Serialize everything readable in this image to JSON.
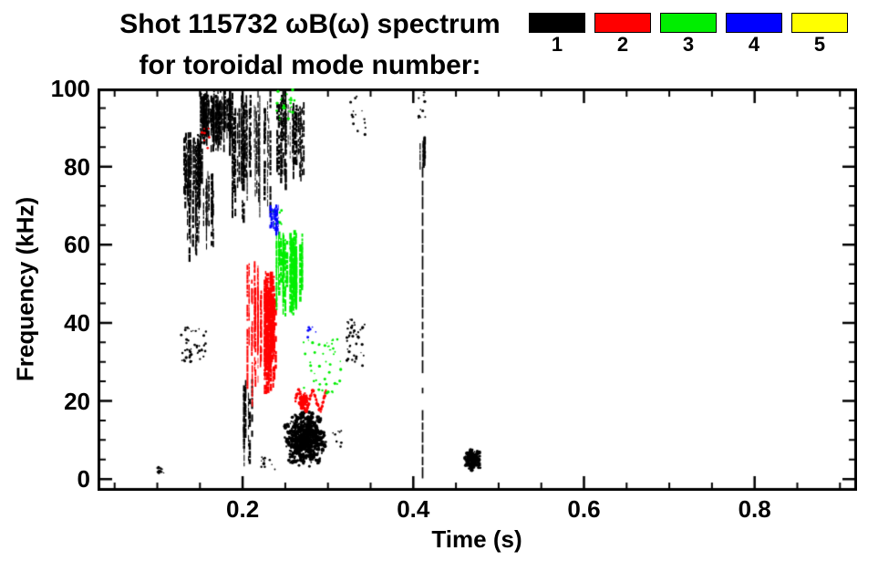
{
  "figure": {
    "title_line1": "Shot 115732 ωB(ω) spectrum",
    "title_line2": "for toroidal mode number:",
    "background": "#ffffff",
    "foreground": "#000000"
  },
  "legend": {
    "position": "top-right",
    "items": [
      {
        "label": "1",
        "color": "#000000"
      },
      {
        "label": "2",
        "color": "#ff0000"
      },
      {
        "label": "3",
        "color": "#00ee00"
      },
      {
        "label": "4",
        "color": "#0000ff"
      },
      {
        "label": "5",
        "color": "#ffff00"
      }
    ]
  },
  "chart_data": {
    "type": "scatter",
    "title": "Shot 115732 ωB(ω) spectrum for toroidal mode number:",
    "xlabel": "Time (s)",
    "ylabel": "Frequency (kHz)",
    "xlim": [
      0.03,
      0.92
    ],
    "ylim": [
      -3,
      100
    ],
    "grid": false,
    "legend_position": "top-right",
    "x_ticks": {
      "major": [
        0.2,
        0.4,
        0.6,
        0.8
      ],
      "labels": [
        "0.2",
        "0.4",
        "0.6",
        "0.8"
      ],
      "minor_step": 0.05
    },
    "y_ticks": {
      "major": [
        0,
        20,
        40,
        60,
        80,
        100
      ],
      "labels": [
        "0",
        "20",
        "40",
        "60",
        "80",
        "100"
      ],
      "minor_step": 5
    },
    "series": [
      {
        "name": "1",
        "color": "#000000",
        "clusters": [
          {
            "style": "speckle",
            "t": [
              0.099,
              0.108
            ],
            "f": [
              1,
              3
            ],
            "n": 14
          },
          {
            "style": "streaks",
            "t": [
              0.15,
              0.186
            ],
            "f": [
              84,
              100
            ],
            "n": 62
          },
          {
            "style": "streaks",
            "t": [
              0.129,
              0.153
            ],
            "f": [
              70,
              89
            ],
            "n": 30
          },
          {
            "style": "streaks",
            "t": [
              0.134,
              0.166
            ],
            "f": [
              57,
              79
            ],
            "n": 20
          },
          {
            "style": "streaks",
            "t": [
              0.186,
              0.236
            ],
            "f": [
              66,
              100
            ],
            "n": 30
          },
          {
            "style": "streaks",
            "t": [
              0.239,
              0.272
            ],
            "f": [
              75,
              100
            ],
            "n": 24
          },
          {
            "style": "speckle",
            "t": [
              0.128,
              0.157
            ],
            "f": [
              30,
              39
            ],
            "n": 48
          },
          {
            "style": "streaks",
            "t": [
              0.199,
              0.213
            ],
            "f": [
              3,
              26
            ],
            "n": 8
          },
          {
            "style": "speckle",
            "t": [
              0.221,
              0.239
            ],
            "f": [
              2,
              6
            ],
            "n": 12
          },
          {
            "style": "blob",
            "t": [
              0.252,
              0.296
            ],
            "f": [
              4,
              17
            ],
            "n": 620
          },
          {
            "style": "speckle",
            "t": [
              0.305,
              0.316
            ],
            "f": [
              8,
              13
            ],
            "n": 8
          },
          {
            "style": "speckle",
            "t": [
              0.322,
              0.343
            ],
            "f": [
              29,
              41
            ],
            "n": 46
          },
          {
            "style": "speckle",
            "t": [
              0.326,
              0.344
            ],
            "f": [
              88,
              100
            ],
            "n": 16
          },
          {
            "style": "vline",
            "t": [
              0.41,
              0.41
            ],
            "f": [
              2,
              80
            ],
            "w": 1.7
          },
          {
            "style": "streaks",
            "t": [
              0.406,
              0.415
            ],
            "f": [
              78,
              88
            ],
            "n": 6
          },
          {
            "style": "speckle",
            "t": [
              0.406,
              0.414
            ],
            "f": [
              92,
              99
            ],
            "n": 10
          },
          {
            "style": "blob",
            "t": [
              0.461,
              0.478
            ],
            "f": [
              2.5,
              7.5
            ],
            "n": 150
          }
        ]
      },
      {
        "name": "2",
        "color": "#ff0000",
        "clusters": [
          {
            "style": "streaks",
            "t": [
              0.203,
              0.218
            ],
            "f": [
              19,
              58
            ],
            "n": 14
          },
          {
            "style": "streaks",
            "t": [
              0.219,
              0.238
            ],
            "f": [
              22,
              54
            ],
            "n": 26,
            "wx": 1.7
          },
          {
            "style": "squiggle",
            "t": [
              0.262,
              0.298
            ],
            "f": [
              17.5,
              22.5
            ],
            "n": 90,
            "cycles": 2.2
          },
          {
            "style": "blob",
            "t": [
              0.267,
              0.277
            ],
            "f": [
              18,
              22
            ],
            "n": 50
          },
          {
            "style": "speckle",
            "t": [
              0.151,
              0.161
            ],
            "f": [
              84,
              90
            ],
            "n": 7
          }
        ]
      },
      {
        "name": "3",
        "color": "#00ee00",
        "clusters": [
          {
            "style": "streaks",
            "t": [
              0.238,
              0.269
            ],
            "f": [
              42,
              64
            ],
            "n": 44,
            "wx": 1.2
          },
          {
            "style": "speckle",
            "t": [
              0.27,
              0.315
            ],
            "f": [
              22,
              36
            ],
            "n": 40
          },
          {
            "style": "speckle",
            "t": [
              0.239,
              0.262
            ],
            "f": [
              92,
              100
            ],
            "n": 24
          },
          {
            "style": "speckle",
            "t": [
              0.234,
              0.246
            ],
            "f": [
              63,
              69
            ],
            "n": 10
          },
          {
            "style": "speckle",
            "t": [
              0.296,
              0.309
            ],
            "f": [
              32,
              38
            ],
            "n": 8
          }
        ]
      },
      {
        "name": "4",
        "color": "#0000ff",
        "clusters": [
          {
            "style": "streaks",
            "t": [
              0.2305,
              0.2435
            ],
            "f": [
              63,
              71
            ],
            "n": 9
          },
          {
            "style": "speckle",
            "t": [
              0.276,
              0.287
            ],
            "f": [
              35,
              39
            ],
            "n": 6
          }
        ]
      },
      {
        "name": "5",
        "color": "#ffff00",
        "clusters": []
      }
    ]
  }
}
